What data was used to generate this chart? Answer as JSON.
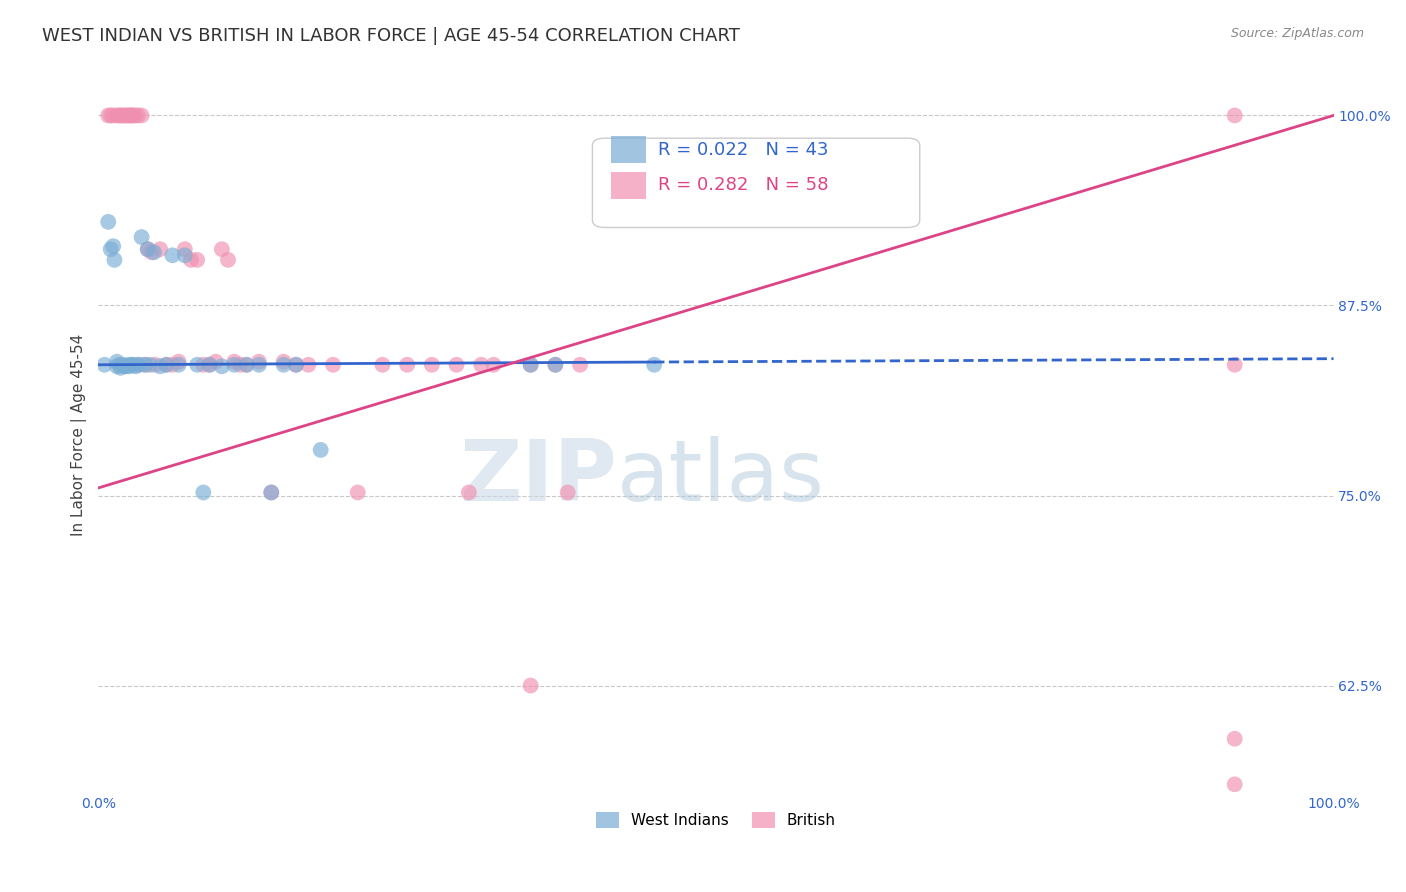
{
  "title": "WEST INDIAN VS BRITISH IN LABOR FORCE | AGE 45-54 CORRELATION CHART",
  "source": "Source: ZipAtlas.com",
  "ylabel": "In Labor Force | Age 45-54",
  "xlim": [
    0.0,
    1.0
  ],
  "ylim": [
    0.555,
    1.025
  ],
  "ytick_positions": [
    0.625,
    0.75,
    0.875,
    1.0
  ],
  "ytick_labels": [
    "62.5%",
    "75.0%",
    "87.5%",
    "100.0%"
  ],
  "west_indian_R": 0.022,
  "west_indian_N": 43,
  "british_R": 0.282,
  "british_N": 58,
  "west_indian_color": "#7aadd4",
  "british_color": "#f090b0",
  "west_indian_line_color": "#3366cc",
  "british_line_color": "#dd4488",
  "watermark_zip": "ZIP",
  "watermark_atlas": "atlas",
  "grid_color": "#bbbbbb",
  "background_color": "#ffffff",
  "title_fontsize": 13,
  "axis_label_fontsize": 11,
  "tick_fontsize": 10,
  "legend_fontsize": 13,
  "wi_line_x": [
    0.0,
    0.45,
    1.0
  ],
  "wi_line_y": [
    0.836,
    0.836,
    0.84
  ],
  "wi_line_dash_start": 0.45,
  "br_line_x": [
    0.0,
    1.0
  ],
  "br_line_y": [
    0.76,
    1.0
  ],
  "west_indian_x": [
    0.005,
    0.008,
    0.01,
    0.012,
    0.013,
    0.015,
    0.015,
    0.017,
    0.018,
    0.02,
    0.021,
    0.022,
    0.025,
    0.025,
    0.027,
    0.028,
    0.03,
    0.032,
    0.033,
    0.035,
    0.038,
    0.04,
    0.042,
    0.045,
    0.05,
    0.055,
    0.06,
    0.065,
    0.07,
    0.08,
    0.085,
    0.09,
    0.1,
    0.11,
    0.12,
    0.13,
    0.14,
    0.15,
    0.16,
    0.18,
    0.35,
    0.37,
    0.45
  ],
  "west_indian_y": [
    0.836,
    0.93,
    0.912,
    0.914,
    0.905,
    0.838,
    0.835,
    0.836,
    0.834,
    0.836,
    0.835,
    0.835,
    0.836,
    0.835,
    0.836,
    0.836,
    0.835,
    0.836,
    0.836,
    0.92,
    0.836,
    0.912,
    0.836,
    0.91,
    0.835,
    0.836,
    0.908,
    0.836,
    0.908,
    0.836,
    0.752,
    0.836,
    0.835,
    0.836,
    0.836,
    0.836,
    0.752,
    0.836,
    0.836,
    0.78,
    0.836,
    0.836,
    0.836
  ],
  "british_x": [
    0.008,
    0.01,
    0.012,
    0.015,
    0.017,
    0.018,
    0.02,
    0.022,
    0.023,
    0.025,
    0.026,
    0.027,
    0.028,
    0.03,
    0.032,
    0.035,
    0.038,
    0.04,
    0.043,
    0.046,
    0.05,
    0.055,
    0.06,
    0.065,
    0.07,
    0.075,
    0.08,
    0.085,
    0.09,
    0.095,
    0.1,
    0.105,
    0.11,
    0.115,
    0.12,
    0.13,
    0.14,
    0.15,
    0.16,
    0.17,
    0.19,
    0.21,
    0.23,
    0.25,
    0.27,
    0.29,
    0.31,
    0.35,
    0.37,
    0.39,
    0.3,
    0.32,
    0.35,
    0.38,
    0.92,
    0.92,
    0.92,
    0.92
  ],
  "british_y": [
    1.0,
    1.0,
    1.0,
    1.0,
    1.0,
    1.0,
    1.0,
    1.0,
    1.0,
    1.0,
    1.0,
    1.0,
    1.0,
    1.0,
    1.0,
    1.0,
    0.836,
    0.912,
    0.91,
    0.836,
    0.912,
    0.836,
    0.836,
    0.838,
    0.912,
    0.905,
    0.905,
    0.836,
    0.836,
    0.838,
    0.912,
    0.905,
    0.838,
    0.836,
    0.836,
    0.838,
    0.752,
    0.838,
    0.836,
    0.836,
    0.836,
    0.752,
    0.836,
    0.836,
    0.836,
    0.836,
    0.836,
    0.625,
    0.836,
    0.836,
    0.752,
    0.836,
    0.836,
    0.752,
    1.0,
    0.836,
    0.59,
    0.56
  ]
}
